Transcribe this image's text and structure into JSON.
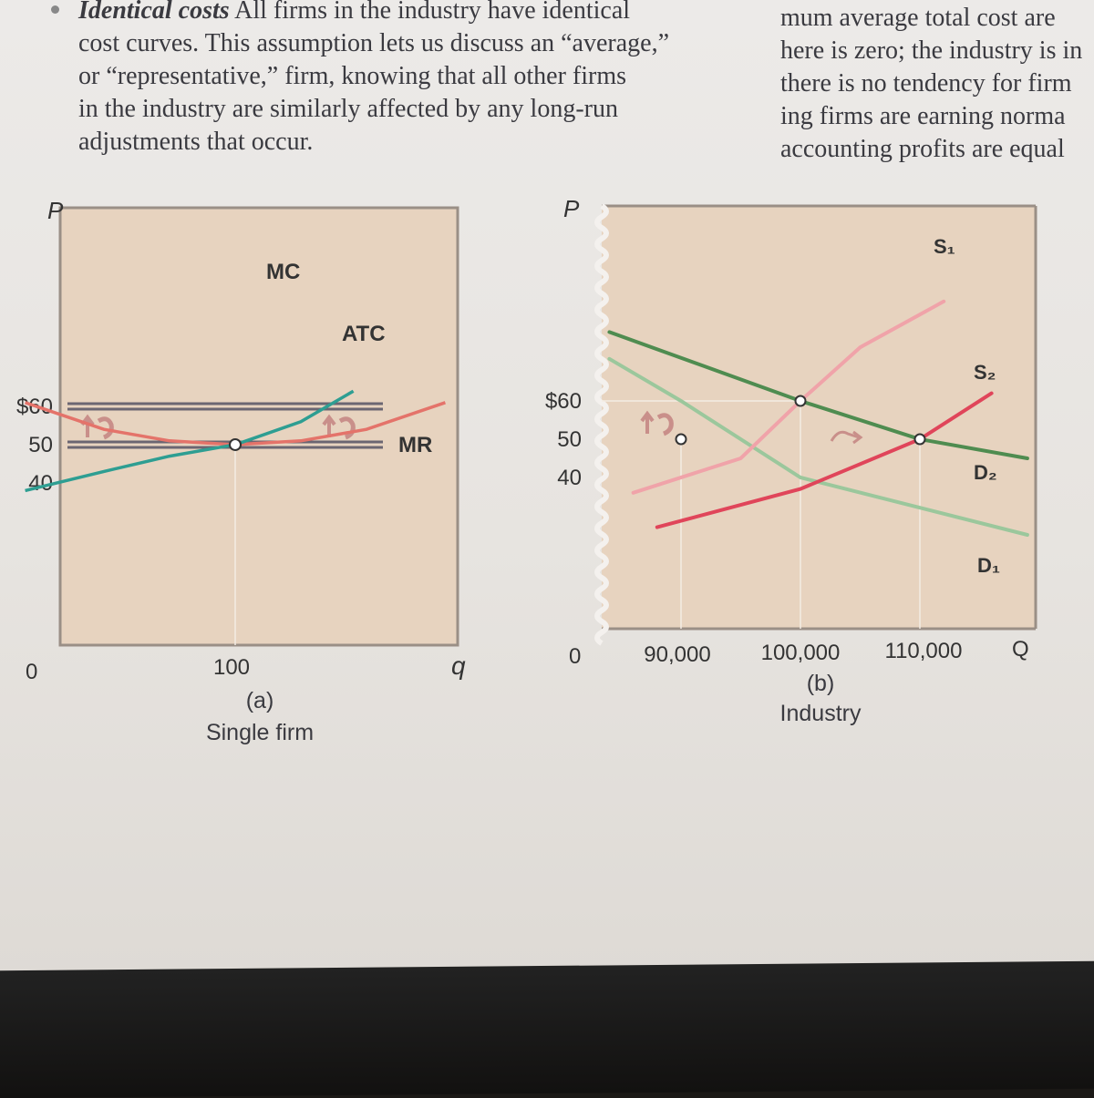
{
  "text": {
    "lead": "Identical costs",
    "left_lines": [
      " All firms in the industry have identical",
      "cost curves. This assumption lets us discuss an “average,”",
      "or “representative,” firm, knowing that all other firms",
      "in the industry are similarly affected by any long-run",
      "adjustments that occur."
    ],
    "right_lines": [
      "mum average total cost are",
      "here is zero; the industry is in",
      "there is no tendency for firm",
      "ing firms are earning norma",
      "accounting profits are equal"
    ]
  },
  "colors": {
    "panel": "#e7d3bf",
    "mc": "#2e9e92",
    "atc": "#e4736a",
    "demand_new": "#4f8c50",
    "demand_old": "#9bc79c",
    "supply_new": "#e0455a",
    "supply_old": "#f0a3a9"
  },
  "chart_data": [
    {
      "type": "line",
      "panel": "(a)",
      "caption_letter": "(a)",
      "caption": "Single firm",
      "xlabel": "q",
      "ylabel": "P",
      "xticks": [
        "100"
      ],
      "yticks": [
        "$60",
        "50",
        "40"
      ],
      "origin_label": "0",
      "series": [
        {
          "name": "MC",
          "x": [
            68,
            80,
            90,
            100,
            110,
            118
          ],
          "y": [
            38,
            43,
            47,
            50,
            56,
            64
          ]
        },
        {
          "name": "ATC",
          "x": [
            68,
            80,
            90,
            100,
            110,
            120,
            132
          ],
          "y": [
            61,
            54,
            51,
            50,
            51,
            54,
            61
          ]
        },
        {
          "name": "MR",
          "x": [
            40,
            150
          ],
          "y": [
            50,
            50
          ]
        },
        {
          "name": "",
          "x": [
            40,
            150
          ],
          "y": [
            60,
            60
          ]
        }
      ],
      "points": [
        {
          "x": 100,
          "y": 50
        }
      ]
    },
    {
      "type": "line",
      "panel": "(b)",
      "caption_letter": "(b)",
      "caption": "Industry",
      "xlabel": "Q",
      "ylabel": "P",
      "xticks": [
        "90,000",
        "100,000",
        "110,000"
      ],
      "yticks": [
        "$60",
        "50",
        "40"
      ],
      "origin_label": "0",
      "series": [
        {
          "name": "S₁",
          "x": [
            86000,
            95000,
            100000,
            105000,
            112000
          ],
          "y": [
            36,
            45,
            60,
            74,
            86
          ]
        },
        {
          "name": "S₂",
          "x": [
            88000,
            100000,
            110000,
            116000
          ],
          "y": [
            27,
            37,
            50,
            62
          ]
        },
        {
          "name": "D₂",
          "x": [
            84000,
            100000,
            110000,
            119000
          ],
          "y": [
            78,
            60,
            50,
            45
          ]
        },
        {
          "name": "D₁",
          "x": [
            84000,
            90000,
            100000,
            119000
          ],
          "y": [
            71,
            60,
            40,
            25
          ]
        }
      ],
      "points": [
        {
          "x": 90000,
          "y": 50
        },
        {
          "x": 100000,
          "y": 60
        },
        {
          "x": 110000,
          "y": 50
        }
      ]
    }
  ]
}
